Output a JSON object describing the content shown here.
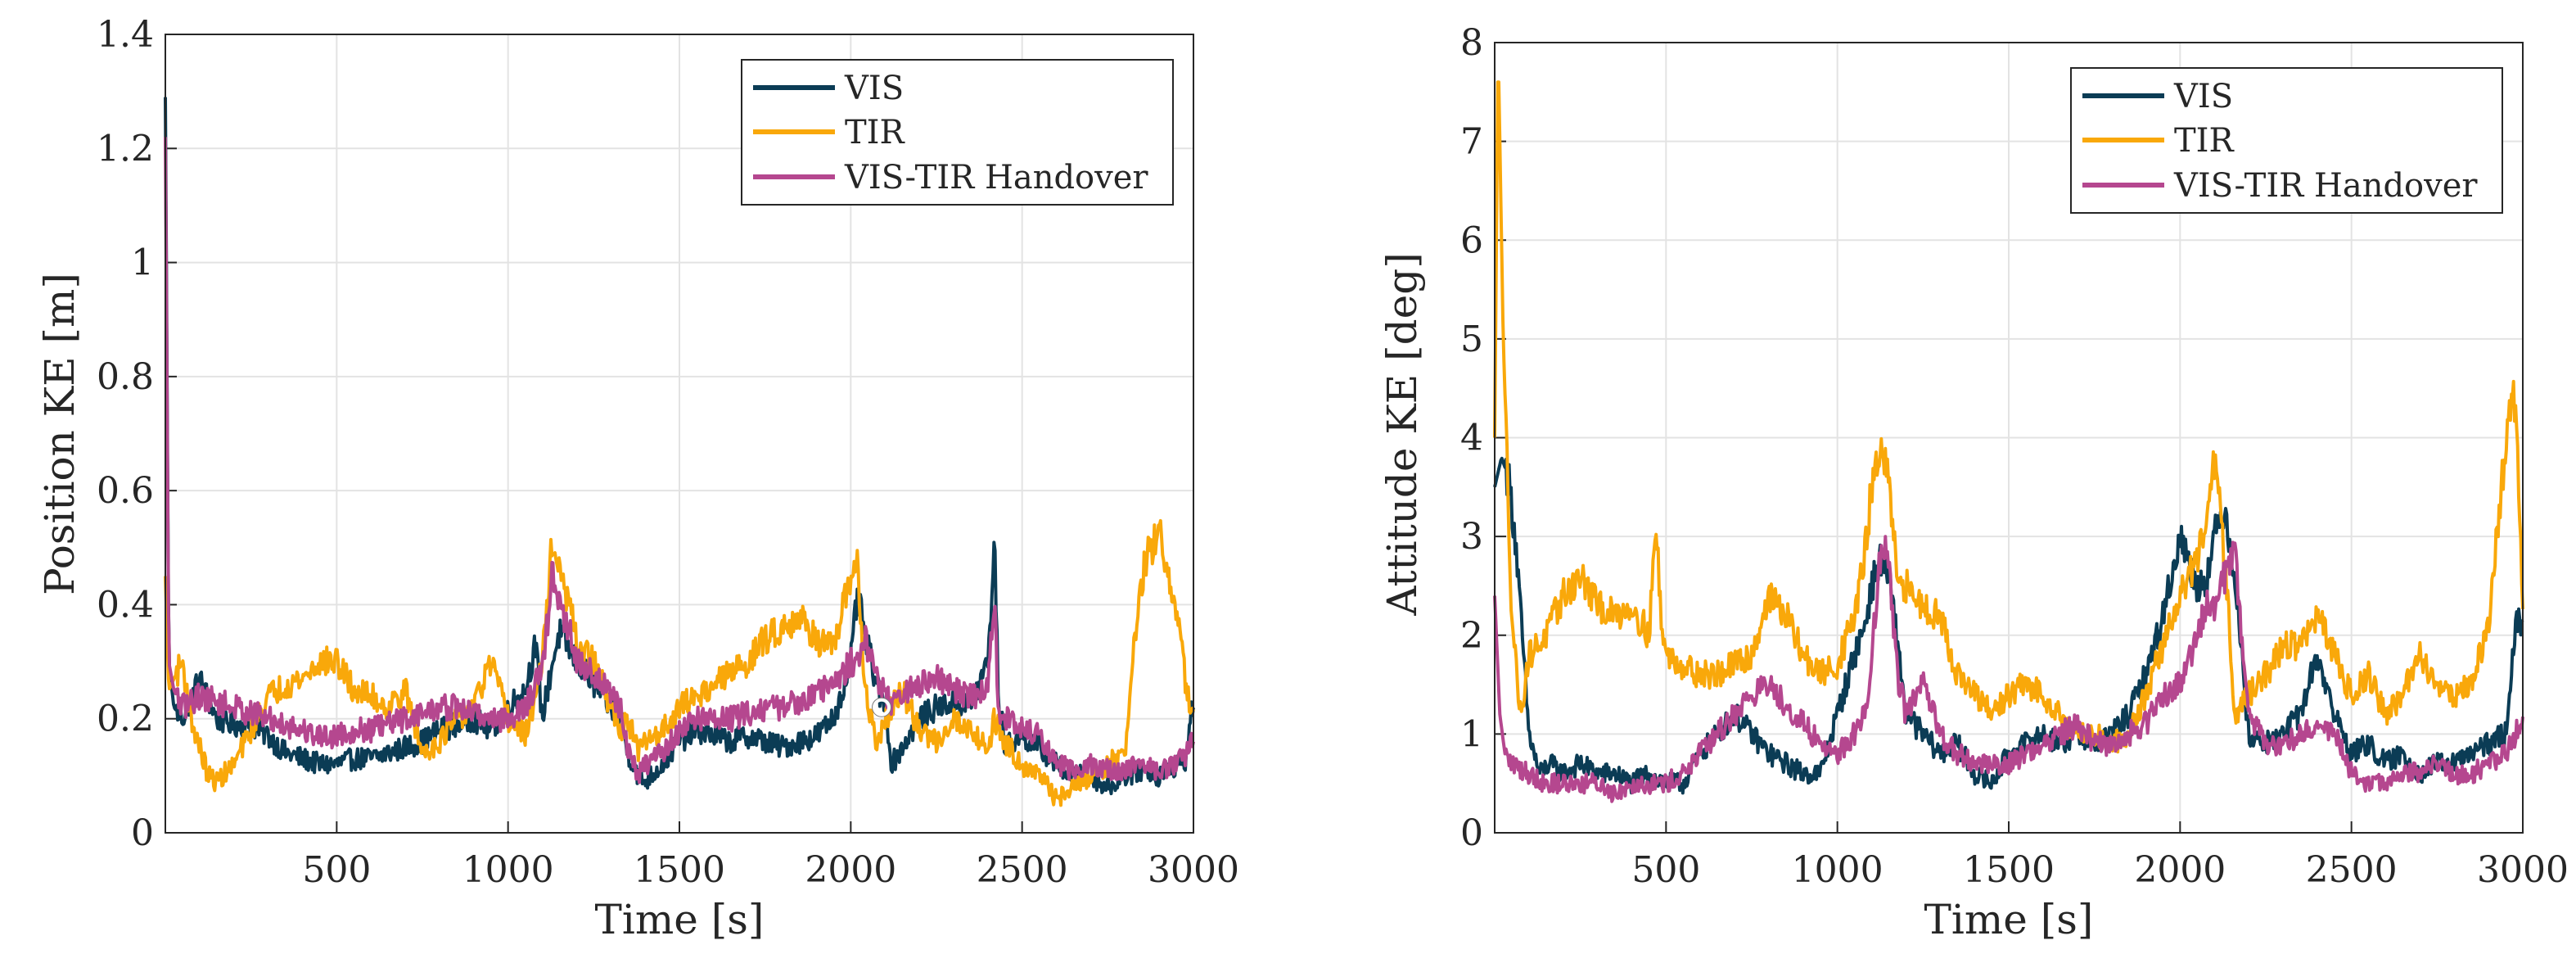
{
  "figure": {
    "colors": {
      "VIS": "#0b3c55",
      "TIR": "#f9a80a",
      "VIS-TIR Handover": "#b5478f",
      "grid": "#e3e3e3",
      "axis": "#262626"
    }
  },
  "chart_data": [
    {
      "type": "line",
      "title": "",
      "xlabel": "Time [s]",
      "ylabel": "Position KE [m]",
      "xlim": [
        0,
        3000
      ],
      "ylim": [
        0,
        1.4
      ],
      "xticks": [
        500,
        1000,
        1500,
        2000,
        2500,
        3000
      ],
      "xtick_labels": [
        "500",
        "1000",
        "1500",
        "2000",
        "2500",
        "3000"
      ],
      "yticks": [
        0,
        0.2,
        0.4,
        0.6,
        0.8,
        1,
        1.2,
        1.4
      ],
      "ytick_labels": [
        "0",
        "0.2",
        "0.4",
        "0.6",
        "0.8",
        "1",
        "1.2",
        "1.4"
      ],
      "grid": true,
      "legend": {
        "location": "top-right",
        "entries": [
          "VIS",
          "TIR",
          "VIS-TIR Handover"
        ]
      },
      "annotations": [
        {
          "type": "marker",
          "x": 2090,
          "y": 0.22,
          "shape": "circle"
        }
      ],
      "series": [
        {
          "name": "VIS",
          "x": [
            0,
            10,
            25,
            50,
            100,
            150,
            200,
            250,
            300,
            350,
            400,
            450,
            500,
            550,
            600,
            650,
            700,
            750,
            800,
            850,
            900,
            950,
            1000,
            1050,
            1080,
            1100,
            1130,
            1150,
            1180,
            1200,
            1250,
            1300,
            1330,
            1350,
            1380,
            1400,
            1450,
            1500,
            1550,
            1600,
            1650,
            1700,
            1750,
            1800,
            1850,
            1900,
            1950,
            1980,
            2000,
            2020,
            2040,
            2060,
            2080,
            2100,
            2120,
            2150,
            2200,
            2250,
            2300,
            2350,
            2400,
            2420,
            2430,
            2450,
            2500,
            2550,
            2600,
            2650,
            2700,
            2750,
            2800,
            2850,
            2900,
            2950,
            2980,
            3000
          ],
          "y": [
            1.29,
            0.3,
            0.22,
            0.2,
            0.27,
            0.2,
            0.19,
            0.19,
            0.17,
            0.14,
            0.13,
            0.12,
            0.12,
            0.13,
            0.13,
            0.14,
            0.15,
            0.16,
            0.18,
            0.19,
            0.2,
            0.18,
            0.22,
            0.25,
            0.33,
            0.2,
            0.3,
            0.35,
            0.32,
            0.3,
            0.26,
            0.22,
            0.2,
            0.14,
            0.1,
            0.09,
            0.12,
            0.16,
            0.18,
            0.17,
            0.16,
            0.17,
            0.16,
            0.15,
            0.16,
            0.17,
            0.2,
            0.26,
            0.3,
            0.42,
            0.35,
            0.3,
            0.25,
            0.22,
            0.12,
            0.15,
            0.2,
            0.22,
            0.23,
            0.22,
            0.3,
            0.51,
            0.25,
            0.15,
            0.17,
            0.15,
            0.12,
            0.1,
            0.1,
            0.08,
            0.1,
            0.11,
            0.1,
            0.12,
            0.13,
            0.24
          ]
        },
        {
          "name": "TIR",
          "x": [
            0,
            10,
            25,
            50,
            75,
            100,
            125,
            150,
            200,
            250,
            300,
            350,
            400,
            450,
            500,
            550,
            600,
            650,
            700,
            750,
            800,
            850,
            900,
            950,
            1000,
            1050,
            1080,
            1100,
            1130,
            1150,
            1180,
            1200,
            1250,
            1300,
            1330,
            1350,
            1380,
            1400,
            1450,
            1500,
            1550,
            1600,
            1650,
            1700,
            1750,
            1800,
            1850,
            1900,
            1950,
            1980,
            2000,
            2020,
            2040,
            2060,
            2080,
            2100,
            2120,
            2150,
            2200,
            2250,
            2300,
            2350,
            2400,
            2420,
            2450,
            2500,
            2550,
            2600,
            2650,
            2700,
            2750,
            2800,
            2830,
            2860,
            2880,
            2900,
            2920,
            2950,
            2980,
            3000
          ],
          "y": [
            0.45,
            0.25,
            0.27,
            0.3,
            0.2,
            0.15,
            0.1,
            0.09,
            0.12,
            0.18,
            0.24,
            0.26,
            0.27,
            0.3,
            0.3,
            0.25,
            0.24,
            0.22,
            0.25,
            0.14,
            0.16,
            0.2,
            0.22,
            0.3,
            0.2,
            0.17,
            0.24,
            0.3,
            0.52,
            0.45,
            0.4,
            0.33,
            0.3,
            0.22,
            0.18,
            0.2,
            0.14,
            0.16,
            0.18,
            0.22,
            0.24,
            0.26,
            0.28,
            0.3,
            0.34,
            0.36,
            0.38,
            0.34,
            0.32,
            0.4,
            0.45,
            0.48,
            0.25,
            0.2,
            0.15,
            0.2,
            0.22,
            0.25,
            0.18,
            0.16,
            0.2,
            0.18,
            0.15,
            0.2,
            0.16,
            0.12,
            0.1,
            0.06,
            0.08,
            0.1,
            0.12,
            0.14,
            0.35,
            0.48,
            0.5,
            0.53,
            0.45,
            0.4,
            0.25,
            0.2
          ]
        },
        {
          "name": "VIS-TIR Handover",
          "x": [
            0,
            10,
            25,
            50,
            100,
            150,
            200,
            250,
            300,
            350,
            400,
            450,
            500,
            550,
            600,
            650,
            700,
            750,
            800,
            850,
            900,
            950,
            1000,
            1050,
            1080,
            1100,
            1130,
            1150,
            1180,
            1200,
            1250,
            1300,
            1330,
            1350,
            1380,
            1400,
            1450,
            1500,
            1550,
            1600,
            1650,
            1700,
            1750,
            1800,
            1850,
            1900,
            1950,
            1980,
            2000,
            2020,
            2040,
            2060,
            2080,
            2100,
            2120,
            2150,
            2200,
            2250,
            2300,
            2350,
            2400,
            2420,
            2430,
            2450,
            2500,
            2550,
            2600,
            2650,
            2700,
            2750,
            2800,
            2850,
            2900,
            2950,
            2980,
            3000
          ],
          "y": [
            1.22,
            0.3,
            0.25,
            0.22,
            0.24,
            0.23,
            0.22,
            0.21,
            0.2,
            0.19,
            0.18,
            0.17,
            0.17,
            0.18,
            0.18,
            0.19,
            0.2,
            0.21,
            0.22,
            0.22,
            0.21,
            0.2,
            0.2,
            0.22,
            0.26,
            0.28,
            0.46,
            0.4,
            0.35,
            0.3,
            0.28,
            0.24,
            0.22,
            0.14,
            0.1,
            0.12,
            0.14,
            0.18,
            0.2,
            0.2,
            0.2,
            0.21,
            0.22,
            0.22,
            0.23,
            0.25,
            0.26,
            0.28,
            0.3,
            0.3,
            0.35,
            0.3,
            0.27,
            0.25,
            0.22,
            0.24,
            0.26,
            0.27,
            0.25,
            0.24,
            0.25,
            0.42,
            0.22,
            0.2,
            0.18,
            0.17,
            0.12,
            0.11,
            0.12,
            0.11,
            0.11,
            0.12,
            0.11,
            0.12,
            0.14,
            0.16
          ]
        }
      ]
    },
    {
      "type": "line",
      "title": "",
      "xlabel": "Time [s]",
      "ylabel": "Attitude KE [deg]",
      "xlim": [
        0,
        3000
      ],
      "ylim": [
        0,
        8
      ],
      "xticks": [
        500,
        1000,
        1500,
        2000,
        2500,
        3000
      ],
      "xtick_labels": [
        "500",
        "1000",
        "1500",
        "2000",
        "2500",
        "3000"
      ],
      "yticks": [
        0,
        1,
        2,
        3,
        4,
        5,
        6,
        7,
        8
      ],
      "ytick_labels": [
        "0",
        "1",
        "2",
        "3",
        "4",
        "5",
        "6",
        "7",
        "8"
      ],
      "grid": true,
      "legend": {
        "location": "top-right",
        "entries": [
          "VIS",
          "TIR",
          "VIS-TIR Handover"
        ]
      },
      "series": [
        {
          "name": "VIS",
          "x": [
            0,
            20,
            40,
            60,
            80,
            100,
            130,
            160,
            200,
            250,
            300,
            350,
            400,
            450,
            500,
            550,
            600,
            650,
            700,
            750,
            800,
            850,
            900,
            950,
            1000,
            1050,
            1080,
            1100,
            1130,
            1150,
            1180,
            1200,
            1250,
            1300,
            1350,
            1400,
            1450,
            1500,
            1550,
            1600,
            1650,
            1700,
            1750,
            1800,
            1850,
            1900,
            1950,
            2000,
            2050,
            2080,
            2100,
            2130,
            2160,
            2200,
            2250,
            2300,
            2350,
            2400,
            2450,
            2500,
            2550,
            2600,
            2650,
            2700,
            2750,
            2800,
            2850,
            2900,
            2950,
            2980,
            3000
          ],
          "y": [
            3.5,
            3.8,
            3.6,
            3.0,
            2.0,
            1.0,
            0.6,
            0.7,
            0.6,
            0.7,
            0.6,
            0.6,
            0.5,
            0.6,
            0.5,
            0.5,
            0.8,
            1.0,
            1.2,
            1.0,
            0.8,
            0.7,
            0.6,
            0.6,
            1.2,
            1.8,
            2.1,
            2.5,
            2.8,
            2.6,
            1.8,
            1.2,
            1.0,
            0.8,
            0.9,
            0.6,
            0.5,
            0.8,
            0.9,
            1.0,
            0.9,
            1.0,
            0.9,
            1.0,
            1.2,
            1.6,
            2.2,
            3.0,
            2.5,
            2.6,
            3.0,
            3.3,
            2.6,
            1.0,
            0.9,
            1.0,
            1.2,
            1.8,
            1.2,
            0.8,
            0.9,
            0.7,
            0.8,
            0.6,
            0.7,
            0.7,
            0.8,
            0.9,
            1.0,
            2.2,
            2.0
          ]
        },
        {
          "name": "TIR",
          "x": [
            0,
            10,
            25,
            50,
            75,
            100,
            150,
            200,
            250,
            300,
            350,
            400,
            450,
            470,
            490,
            500,
            550,
            600,
            650,
            700,
            750,
            800,
            850,
            900,
            950,
            1000,
            1050,
            1080,
            1100,
            1130,
            1150,
            1180,
            1200,
            1250,
            1300,
            1350,
            1400,
            1450,
            1500,
            1550,
            1600,
            1650,
            1700,
            1750,
            1800,
            1850,
            1900,
            1950,
            2000,
            2050,
            2080,
            2100,
            2130,
            2160,
            2200,
            2250,
            2300,
            2350,
            2400,
            2450,
            2500,
            2550,
            2600,
            2650,
            2700,
            2750,
            2800,
            2850,
            2900,
            2930,
            2960,
            2980,
            3000
          ],
          "y": [
            4.0,
            8.0,
            5.0,
            2.2,
            1.2,
            1.8,
            2.0,
            2.4,
            2.6,
            2.3,
            2.2,
            2.3,
            2.0,
            3.1,
            2.0,
            1.8,
            1.7,
            1.6,
            1.6,
            1.7,
            1.8,
            2.4,
            2.2,
            1.8,
            1.6,
            1.7,
            2.2,
            2.8,
            3.5,
            3.9,
            3.5,
            2.4,
            2.5,
            2.3,
            2.2,
            1.6,
            1.4,
            1.2,
            1.4,
            1.5,
            1.4,
            1.2,
            1.0,
            1.0,
            0.9,
            1.0,
            1.4,
            1.9,
            2.4,
            2.8,
            3.1,
            3.8,
            2.8,
            1.2,
            1.4,
            1.6,
            1.9,
            1.9,
            2.2,
            1.8,
            1.4,
            1.6,
            1.2,
            1.4,
            1.8,
            1.5,
            1.4,
            1.5,
            2.1,
            3.2,
            4.3,
            4.4,
            2.2
          ]
        },
        {
          "name": "VIS-TIR Handover",
          "x": [
            0,
            15,
            30,
            50,
            100,
            150,
            200,
            250,
            300,
            350,
            400,
            450,
            500,
            550,
            600,
            650,
            700,
            750,
            800,
            850,
            900,
            950,
            1000,
            1050,
            1080,
            1100,
            1130,
            1150,
            1180,
            1200,
            1250,
            1300,
            1350,
            1400,
            1450,
            1500,
            1550,
            1600,
            1650,
            1700,
            1750,
            1800,
            1850,
            1900,
            1950,
            2000,
            2050,
            2080,
            2100,
            2130,
            2160,
            2200,
            2250,
            2300,
            2350,
            2400,
            2450,
            2500,
            2550,
            2600,
            2650,
            2700,
            2750,
            2800,
            2850,
            2900,
            2950,
            2980,
            3000
          ],
          "y": [
            2.4,
            1.2,
            0.8,
            0.7,
            0.6,
            0.5,
            0.5,
            0.5,
            0.5,
            0.4,
            0.5,
            0.5,
            0.5,
            0.6,
            0.8,
            1.0,
            1.2,
            1.4,
            1.5,
            1.3,
            1.1,
            0.9,
            0.8,
            1.0,
            1.2,
            1.8,
            3.0,
            2.7,
            1.5,
            1.2,
            1.5,
            1.0,
            0.8,
            0.7,
            0.7,
            0.7,
            0.8,
            0.9,
            1.0,
            1.1,
            0.9,
            0.9,
            1.0,
            1.1,
            1.4,
            1.5,
            2.0,
            2.4,
            2.2,
            2.6,
            2.8,
            1.2,
            0.9,
            0.9,
            1.0,
            1.1,
            1.0,
            0.6,
            0.5,
            0.5,
            0.6,
            0.6,
            0.7,
            0.6,
            0.6,
            0.7,
            0.8,
            1.0,
            1.2
          ]
        }
      ]
    }
  ]
}
